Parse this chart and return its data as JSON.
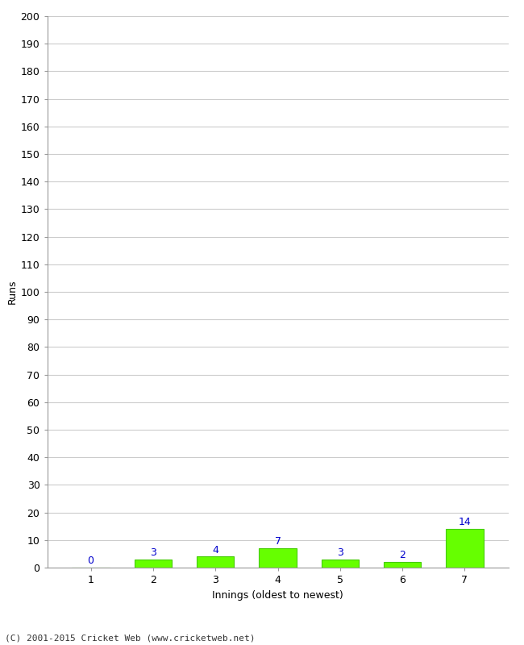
{
  "categories": [
    "1",
    "2",
    "3",
    "4",
    "5",
    "6",
    "7"
  ],
  "values": [
    0,
    3,
    4,
    7,
    3,
    2,
    14
  ],
  "bar_color": "#66ff00",
  "bar_edge_color": "#44cc00",
  "xlabel": "Innings (oldest to newest)",
  "ylabel": "Runs",
  "ylim": [
    0,
    200
  ],
  "yticks": [
    0,
    10,
    20,
    30,
    40,
    50,
    60,
    70,
    80,
    90,
    100,
    110,
    120,
    130,
    140,
    150,
    160,
    170,
    180,
    190,
    200
  ],
  "background_color": "#ffffff",
  "grid_color": "#cccccc",
  "label_color": "#0000cc",
  "footer": "(C) 2001-2015 Cricket Web (www.cricketweb.net)"
}
